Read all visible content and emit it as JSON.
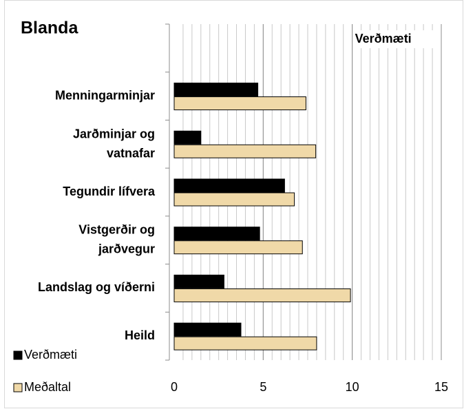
{
  "chart_data": {
    "type": "bar",
    "orientation": "horizontal",
    "title": "Blanda",
    "annotation": "Verðmæti",
    "categories": [
      null,
      "Menningarminjar",
      "Jarðminjar og vatnafar",
      "Tegundir lífvera",
      "Vistgerðir og jarðvegur",
      "Landslag og víðerni",
      "Heild"
    ],
    "series": [
      {
        "name": "Verðmæti",
        "color": "#000000",
        "values": [
          null,
          4.7,
          1.5,
          6.2,
          4.8,
          2.8,
          3.75
        ]
      },
      {
        "name": "Meðaltal",
        "color": "#f0d9a8",
        "values": [
          null,
          7.4,
          7.95,
          6.75,
          7.2,
          9.9,
          8.0
        ]
      }
    ],
    "xlim": [
      0,
      15
    ],
    "xticks": [
      0,
      5,
      10,
      15
    ],
    "minor_grid_step": 0.5,
    "grid": true,
    "legend": "bottom-left"
  }
}
